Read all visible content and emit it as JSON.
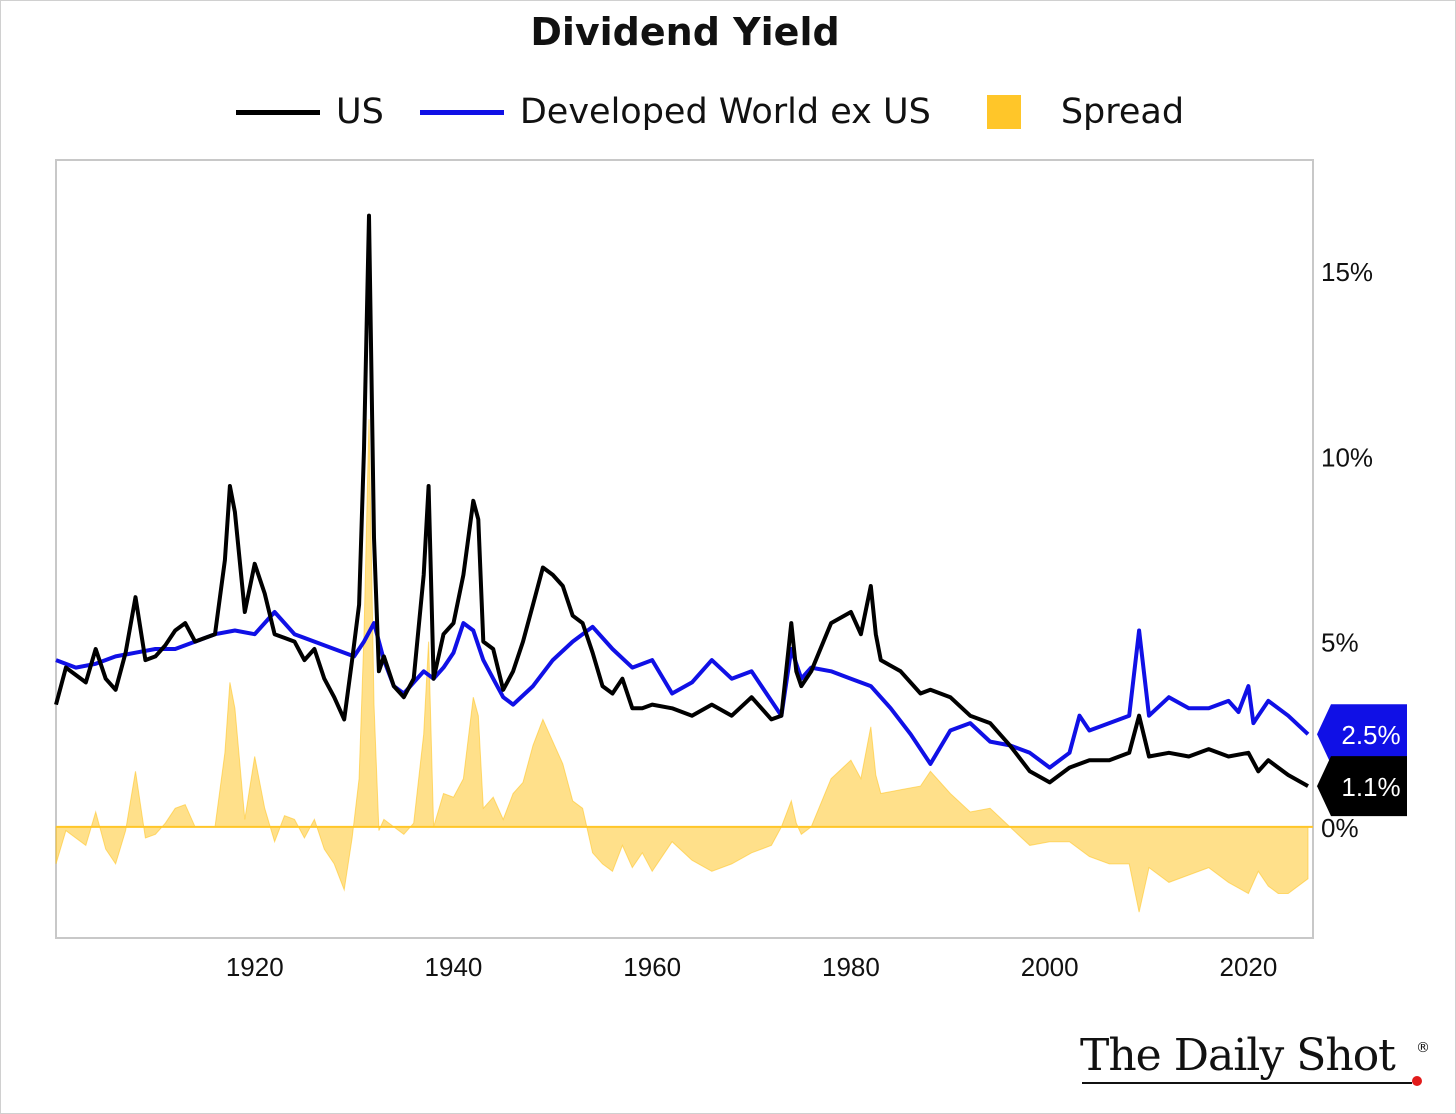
{
  "chart_data": {
    "type": "line",
    "title": "Dividend Yield",
    "xlabel": "",
    "ylabel": "",
    "xlim": [
      1900,
      2026.5
    ],
    "ylim": [
      -3,
      18
    ],
    "x_ticks": [
      "1920",
      "1940",
      "1960",
      "1980",
      "2000",
      "2020"
    ],
    "y_ticks": [
      "0%",
      "5%",
      "10%",
      "15%"
    ],
    "grid": false,
    "legend_position": "top",
    "last_value_labels": {
      "us": "1.1%",
      "dev": "2.5%"
    },
    "series": [
      {
        "name": "US",
        "color": "#000000",
        "x": [
          1900,
          1901,
          1903,
          1904,
          1905,
          1906,
          1907,
          1908,
          1909,
          1910,
          1911,
          1912,
          1913,
          1914,
          1915,
          1916,
          1917,
          1917.5,
          1918,
          1919,
          1920,
          1921,
          1922,
          1923,
          1924,
          1925,
          1926,
          1927,
          1928,
          1929,
          1929.8,
          1930.5,
          1931,
          1931.5,
          1932,
          1932.5,
          1933,
          1934,
          1935,
          1936,
          1937,
          1937.5,
          1938,
          1939,
          1940,
          1941,
          1942,
          1942.5,
          1943,
          1944,
          1945,
          1946,
          1947,
          1948,
          1949,
          1950,
          1951,
          1952,
          1953,
          1954,
          1955,
          1956,
          1957,
          1958,
          1959,
          1960,
          1962,
          1964,
          1966,
          1968,
          1970,
          1972,
          1973,
          1974,
          1974.5,
          1975,
          1976,
          1978,
          1980,
          1981,
          1982,
          1982.5,
          1983,
          1985,
          1987,
          1988,
          1990,
          1992,
          1994,
          1996,
          1998,
          2000,
          2002,
          2004,
          2006,
          2008,
          2009,
          2010,
          2012,
          2014,
          2016,
          2018,
          2020,
          2021,
          2022,
          2023,
          2024,
          2026
        ],
        "y": [
          3.3,
          4.3,
          3.9,
          4.8,
          4.0,
          3.7,
          4.7,
          6.2,
          4.5,
          4.6,
          4.9,
          5.3,
          5.5,
          5.0,
          5.1,
          5.2,
          7.2,
          9.2,
          8.5,
          5.8,
          7.1,
          6.3,
          5.2,
          5.1,
          5.0,
          4.5,
          4.8,
          4.0,
          3.5,
          2.9,
          4.5,
          6.0,
          10.2,
          16.5,
          7.8,
          4.2,
          4.6,
          3.8,
          3.5,
          4.0,
          6.8,
          9.2,
          4.0,
          5.2,
          5.5,
          6.8,
          8.8,
          8.3,
          5.0,
          4.8,
          3.7,
          4.2,
          5.0,
          6.0,
          7.0,
          6.8,
          6.5,
          5.7,
          5.5,
          4.7,
          3.8,
          3.6,
          4.0,
          3.2,
          3.2,
          3.3,
          3.2,
          3.0,
          3.3,
          3.0,
          3.5,
          2.9,
          3.0,
          5.5,
          4.2,
          3.8,
          4.2,
          5.5,
          5.8,
          5.2,
          6.5,
          5.2,
          4.5,
          4.2,
          3.6,
          3.7,
          3.5,
          3.0,
          2.8,
          2.2,
          1.5,
          1.2,
          1.6,
          1.8,
          1.8,
          2.0,
          3.0,
          1.9,
          2.0,
          1.9,
          2.1,
          1.9,
          2.0,
          1.5,
          1.8,
          1.6,
          1.4,
          1.1
        ]
      },
      {
        "name": "Developed World ex US",
        "color": "#1010e6",
        "x": [
          1900,
          1902,
          1904,
          1906,
          1908,
          1910,
          1912,
          1914,
          1916,
          1918,
          1920,
          1922,
          1924,
          1926,
          1928,
          1930,
          1931,
          1932,
          1933,
          1934,
          1935,
          1936,
          1937,
          1938,
          1939,
          1940,
          1941,
          1942,
          1943,
          1944,
          1945,
          1946,
          1948,
          1950,
          1952,
          1954,
          1956,
          1958,
          1960,
          1962,
          1964,
          1966,
          1968,
          1970,
          1972,
          1973,
          1974,
          1975,
          1976,
          1978,
          1980,
          1982,
          1984,
          1986,
          1988,
          1990,
          1992,
          1994,
          1996,
          1998,
          2000,
          2002,
          2003,
          2004,
          2006,
          2008,
          2009,
          2010,
          2012,
          2014,
          2016,
          2018,
          2019,
          2020,
          2020.5,
          2021,
          2022,
          2024,
          2026
        ],
        "y": [
          4.5,
          4.3,
          4.4,
          4.6,
          4.7,
          4.8,
          4.8,
          5.0,
          5.2,
          5.3,
          5.2,
          5.8,
          5.2,
          5.0,
          4.8,
          4.6,
          5.0,
          5.5,
          4.5,
          3.8,
          3.6,
          3.9,
          4.2,
          4.0,
          4.3,
          4.7,
          5.5,
          5.3,
          4.5,
          4.0,
          3.5,
          3.3,
          3.8,
          4.5,
          5.0,
          5.4,
          4.8,
          4.3,
          4.5,
          3.6,
          3.9,
          4.5,
          4.0,
          4.2,
          3.4,
          3.0,
          4.8,
          4.0,
          4.3,
          4.2,
          4.0,
          3.8,
          3.2,
          2.5,
          1.7,
          2.6,
          2.8,
          2.3,
          2.2,
          2.0,
          1.6,
          2.0,
          3.0,
          2.6,
          2.8,
          3.0,
          5.3,
          3.0,
          3.5,
          3.2,
          3.2,
          3.4,
          3.1,
          3.8,
          2.8,
          3.0,
          3.4,
          3.0,
          2.5
        ]
      },
      {
        "name": "Spread",
        "type": "area",
        "color": "#ffc629",
        "description": "US minus Developed World ex US",
        "x": [
          1900,
          1901,
          1903,
          1904,
          1905,
          1906,
          1907,
          1908,
          1909,
          1910,
          1911,
          1912,
          1913,
          1914,
          1915,
          1916,
          1917,
          1917.5,
          1918,
          1919,
          1920,
          1921,
          1922,
          1923,
          1924,
          1925,
          1926,
          1927,
          1928,
          1929,
          1929.8,
          1930.5,
          1931,
          1931.5,
          1932,
          1932.5,
          1933,
          1934,
          1935,
          1936,
          1937,
          1937.5,
          1938,
          1939,
          1940,
          1941,
          1942,
          1942.5,
          1943,
          1944,
          1945,
          1946,
          1947,
          1948,
          1949,
          1950,
          1951,
          1952,
          1953,
          1954,
          1955,
          1956,
          1957,
          1958,
          1959,
          1960,
          1962,
          1964,
          1966,
          1968,
          1970,
          1972,
          1973,
          1974,
          1974.5,
          1975,
          1976,
          1978,
          1980,
          1981,
          1982,
          1982.5,
          1983,
          1985,
          1987,
          1988,
          1990,
          1992,
          1994,
          1996,
          1998,
          2000,
          2002,
          2004,
          2006,
          2008,
          2009,
          2010,
          2012,
          2014,
          2016,
          2018,
          2020,
          2021,
          2022,
          2023,
          2024,
          2026
        ],
        "y": [
          -1.0,
          -0.1,
          -0.5,
          0.4,
          -0.6,
          -1.0,
          -0.1,
          1.5,
          -0.3,
          -0.2,
          0.1,
          0.5,
          0.6,
          0.0,
          0.0,
          0.0,
          2.0,
          3.9,
          3.2,
          0.2,
          1.9,
          0.5,
          -0.4,
          0.3,
          0.2,
          -0.3,
          0.2,
          -0.6,
          -1.0,
          -1.7,
          -0.3,
          1.3,
          5.2,
          11.0,
          3.3,
          -0.1,
          0.2,
          0.0,
          -0.2,
          0.1,
          2.5,
          5.0,
          0.0,
          0.9,
          0.8,
          1.3,
          3.5,
          3.0,
          0.5,
          0.8,
          0.2,
          0.9,
          1.2,
          2.2,
          2.9,
          2.3,
          1.7,
          0.7,
          0.5,
          -0.7,
          -1.0,
          -1.2,
          -0.5,
          -1.1,
          -0.7,
          -1.2,
          -0.4,
          -0.9,
          -1.2,
          -1.0,
          -0.7,
          -0.5,
          0.0,
          0.7,
          0.1,
          -0.2,
          0.0,
          1.3,
          1.8,
          1.3,
          2.7,
          1.4,
          0.9,
          1.0,
          1.1,
          1.5,
          0.9,
          0.4,
          0.5,
          0.0,
          -0.5,
          -0.4,
          -0.4,
          -0.8,
          -1.0,
          -1.0,
          -2.3,
          -1.1,
          -1.5,
          -1.3,
          -1.1,
          -1.5,
          -1.8,
          -1.2,
          -1.6,
          -1.8,
          -1.8,
          -1.4
        ]
      }
    ]
  },
  "logo": {
    "text": "The Daily Shot",
    "reg": "®"
  }
}
